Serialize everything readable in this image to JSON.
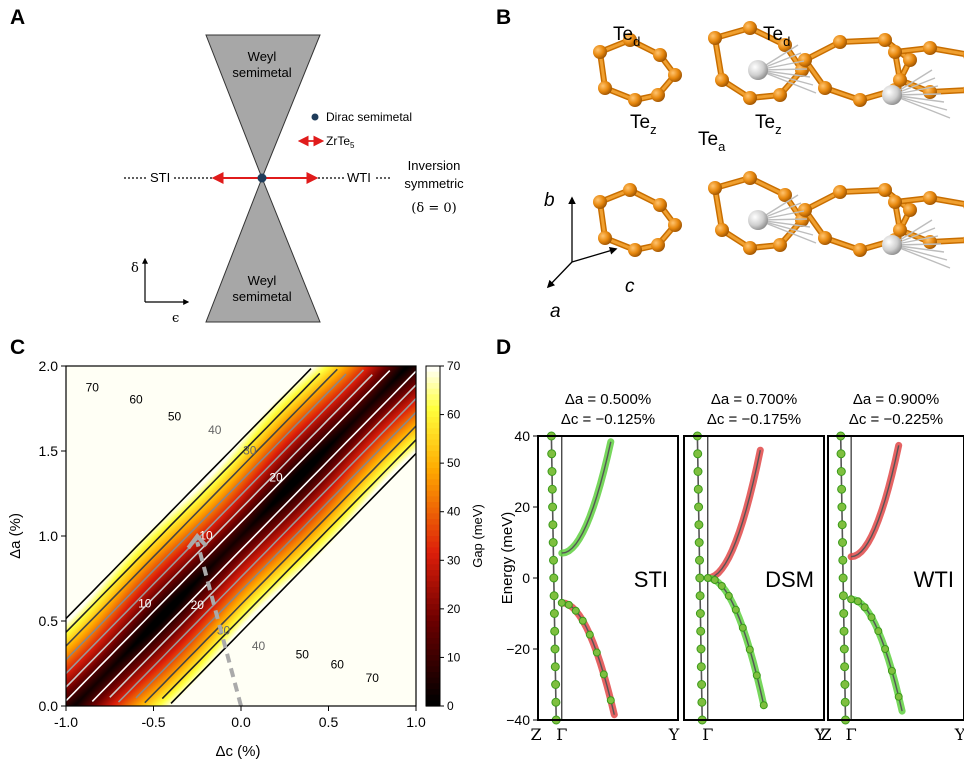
{
  "panel_labels": {
    "A": "A",
    "B": "B",
    "C": "C",
    "D": "D"
  },
  "panel_a": {
    "top_cone": [
      "Weyl",
      "semimetal"
    ],
    "bottom_cone": [
      "Weyl",
      "semimetal"
    ],
    "legend_dirac": "Dirac semimetal",
    "legend_zrte5_base": "ZrTe",
    "legend_zrte5_sub": "5",
    "left_label": "STI",
    "right_label": "WTI",
    "inversion_lines": [
      "Inversion",
      "symmetric",
      "(δ = 0)"
    ],
    "axis_delta": "δ",
    "axis_epsilon": "ϵ",
    "colors": {
      "cone": "#a7a7a7",
      "arrow": "#e01b1b",
      "dot": "#1f3c5a"
    }
  },
  "panel_b": {
    "atom_labels": [
      {
        "base": "Te",
        "sub": "d"
      },
      {
        "base": "Te",
        "sub": "d"
      },
      {
        "base": "Te",
        "sub": "z"
      },
      {
        "base": "Te",
        "sub": "a"
      },
      {
        "base": "Te",
        "sub": "z"
      }
    ],
    "axes": {
      "a": "a",
      "b": "b",
      "c": "c"
    },
    "colors": {
      "te": "#e8890f",
      "zr": "#d0d0d0"
    }
  },
  "panel_c": {
    "chart_data": {
      "type": "heatmap",
      "xlabel": "Δc (%)",
      "ylabel": "Δa (%)",
      "xlim": [
        -1.0,
        1.0
      ],
      "ylim": [
        0.0,
        2.0
      ],
      "x_ticks": [
        "-1.0",
        "-0.5",
        "0.0",
        "0.5",
        "1.0"
      ],
      "y_ticks": [
        "0.0",
        "0.5",
        "1.0",
        "1.5",
        "2.0"
      ],
      "colorbar_label": "Gap (meV)",
      "colorbar_ticks": [
        "0",
        "10",
        "20",
        "30",
        "40",
        "50",
        "60",
        "70"
      ],
      "colorbar_range": [
        0,
        70
      ],
      "contour_labels": [
        "70",
        "60",
        "50",
        "40",
        "30",
        "20",
        "10",
        "10",
        "20",
        "30",
        "40",
        "50",
        "60",
        "70"
      ],
      "arrow_path": {
        "from": [
          0.0,
          0.0
        ],
        "to": [
          -0.25,
          1.0
        ]
      }
    }
  },
  "panel_d": {
    "chart_data": {
      "type": "line",
      "ylabel": "Energy (meV)",
      "ylim": [
        -40,
        40
      ],
      "y_ticks": [
        "40",
        "20",
        "0",
        "−20",
        "−40"
      ],
      "subplots": [
        {
          "da": "Δa = 0.500%",
          "dc": "Δc = −0.125%",
          "phase": "STI",
          "gap_top": 7,
          "gap_bottom": -7,
          "x_labels": [
            "Z",
            "Γ",
            "Y"
          ]
        },
        {
          "da": "Δa = 0.700%",
          "dc": "Δc = −0.175%",
          "phase": "DSM",
          "gap_top": 0,
          "gap_bottom": 0,
          "x_labels": [
            "",
            "Γ",
            "Y"
          ]
        },
        {
          "da": "Δa = 0.900%",
          "dc": "Δc = −0.225%",
          "phase": "WTI",
          "gap_top": 6,
          "gap_bottom": -6,
          "x_labels": [
            "Z",
            "Γ",
            "Y"
          ]
        }
      ]
    }
  }
}
